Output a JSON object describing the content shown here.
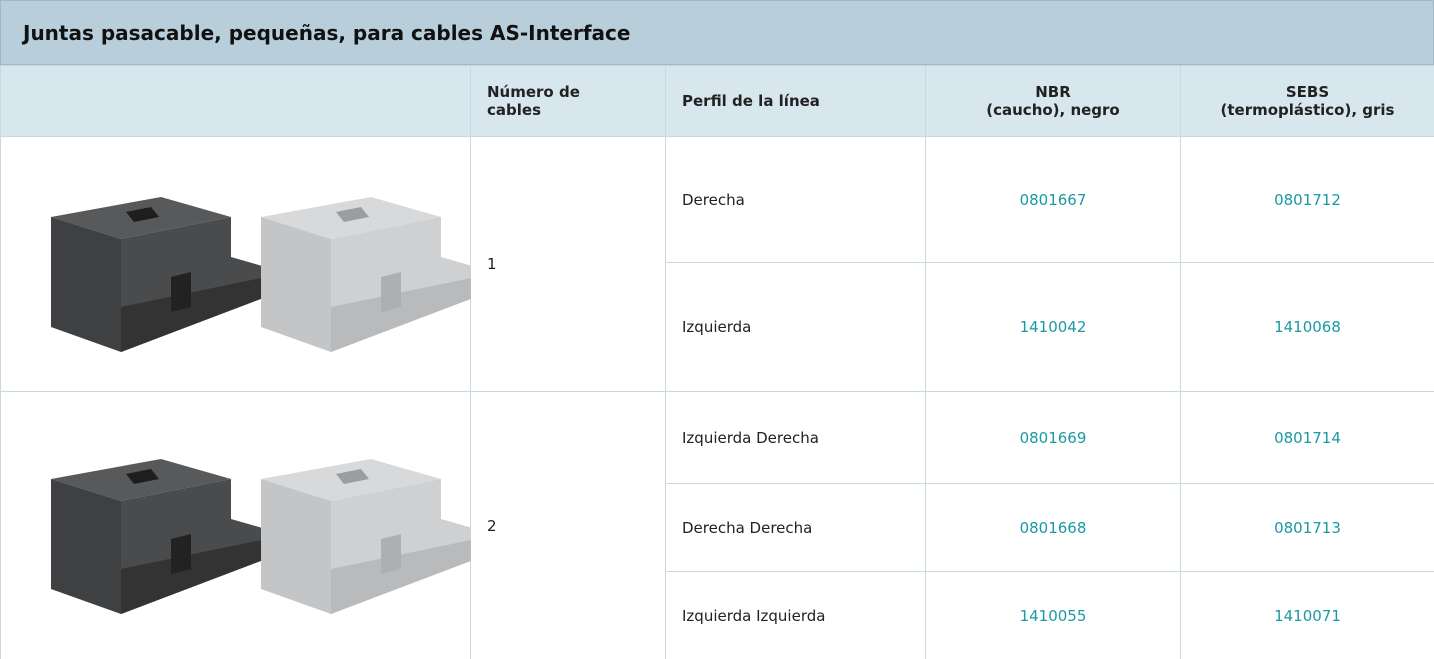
{
  "header": {
    "title": "Juntas pasacable, pequeñas, para cables AS-Interface"
  },
  "table": {
    "columns": [
      [
        "Número de",
        "cables"
      ],
      [
        "Perfil de la línea"
      ],
      [
        "NBR",
        "(caucho), negro"
      ],
      [
        "SEBS",
        "(termoplástico), gris"
      ]
    ],
    "groups": [
      {
        "cables": "1",
        "rows": [
          {
            "profile": "Derecha",
            "nbr": "0801667",
            "sebs": "0801712"
          },
          {
            "profile": "Izquierda",
            "nbr": "1410042",
            "sebs": "1410068"
          }
        ]
      },
      {
        "cables": "2",
        "rows": [
          {
            "profile": "Izquierda Derecha",
            "nbr": "0801669",
            "sebs": "0801714"
          },
          {
            "profile": "Derecha Derecha",
            "nbr": "0801668",
            "sebs": "0801713"
          },
          {
            "profile": "Izquierda Izquierda",
            "nbr": "1410055",
            "sebs": "1410071"
          }
        ]
      }
    ]
  }
}
